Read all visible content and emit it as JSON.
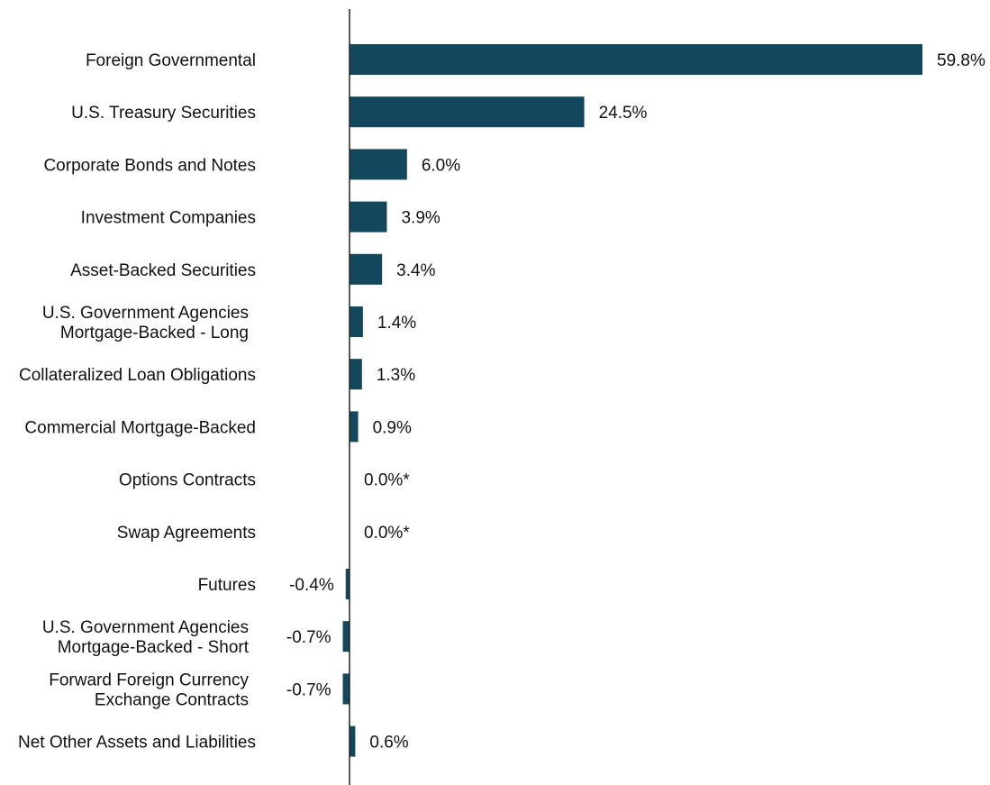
{
  "chart_data": {
    "type": "bar",
    "orientation": "horizontal",
    "title": "",
    "xlabel": "",
    "ylabel": "",
    "bar_color": "#12475c",
    "grid": false,
    "xlim": [
      -1.5,
      59.8
    ],
    "categories": [
      [
        "Foreign Governmental"
      ],
      [
        "U.S. Treasury Securities"
      ],
      [
        "Corporate Bonds and Notes"
      ],
      [
        "Investment Companies"
      ],
      [
        "Asset-Backed Securities"
      ],
      [
        "U.S. Government Agencies",
        "Mortgage-Backed - Long"
      ],
      [
        "Collateralized Loan Obligations"
      ],
      [
        "Commercial Mortgage-Backed"
      ],
      [
        "Options Contracts"
      ],
      [
        "Swap Agreements"
      ],
      [
        "Futures"
      ],
      [
        "U.S. Government Agencies",
        "Mortgage-Backed - Short"
      ],
      [
        "Forward Foreign Currency",
        "Exchange Contracts"
      ],
      [
        "Net Other Assets and Liabilities"
      ]
    ],
    "values": [
      59.8,
      24.5,
      6.0,
      3.9,
      3.4,
      1.4,
      1.3,
      0.9,
      0.0,
      0.0,
      -0.4,
      -0.7,
      -0.7,
      0.6
    ],
    "value_labels": [
      "59.8%",
      "24.5%",
      "6.0%",
      "3.9%",
      "3.4%",
      "1.4%",
      "1.3%",
      "0.9%",
      "0.0%*",
      "0.0%*",
      "-0.4%",
      "-0.7%",
      "-0.7%",
      "0.6%"
    ]
  }
}
